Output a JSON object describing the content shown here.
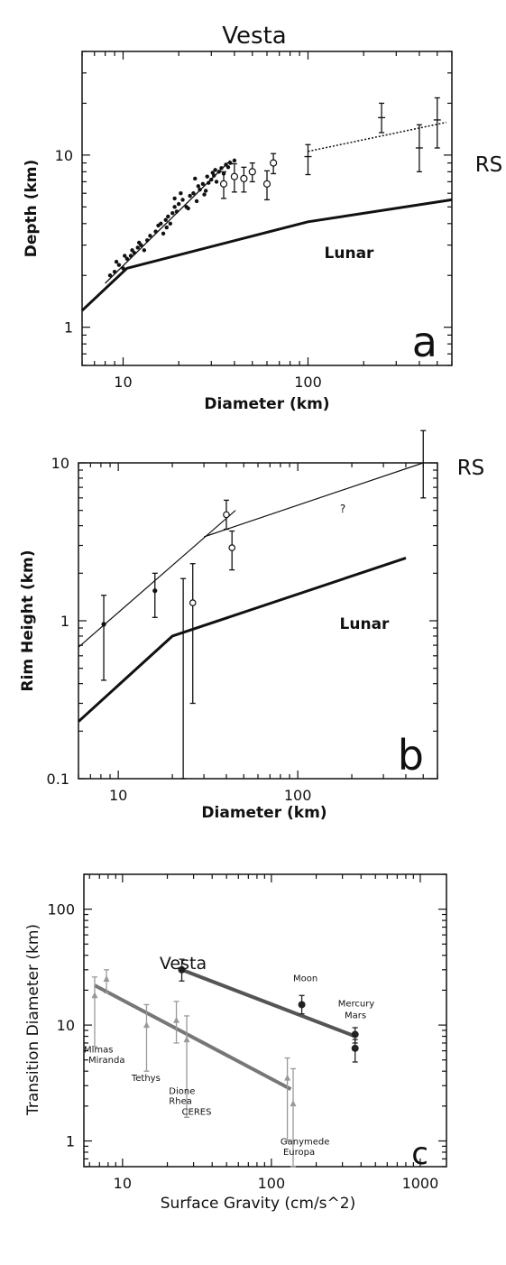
{
  "title": "Vesta",
  "chart_data": [
    {
      "panel": "a",
      "type": "scatter",
      "xlabel": "Diameter (km)",
      "ylabel": "Depth (km)",
      "xscale": "log",
      "yscale": "log",
      "xlim": [
        6,
        600
      ],
      "ylim": [
        0.6,
        40
      ],
      "xticks": [
        10,
        100
      ],
      "yticks": [
        1,
        10
      ],
      "panel_letter": "a",
      "series": [
        {
          "name": "Lunar",
          "kind": "line",
          "x": [
            6,
            10.5,
            100,
            600
          ],
          "y": [
            1.25,
            2.2,
            4.1,
            5.5
          ]
        },
        {
          "kind": "line",
          "x": [
            8,
            38
          ],
          "y": [
            1.8,
            9.3
          ]
        },
        {
          "kind": "scatter",
          "x": [
            8.5,
            9,
            9.5,
            10,
            10.5,
            11,
            11.5,
            12,
            12.5,
            13,
            9.2,
            10.2,
            11.2,
            12.2,
            13.5,
            14,
            15,
            15.5,
            16,
            16.5,
            17,
            17.5,
            18,
            18.5,
            19,
            19.5,
            20,
            21,
            22,
            23,
            24,
            25,
            26,
            27,
            28,
            29,
            30,
            31,
            32,
            33,
            34,
            35,
            36,
            37,
            38,
            40,
            19,
            20.5,
            22.5,
            25.5,
            28.5,
            31.5,
            17.2,
            24.5,
            27.5,
            30.5
          ],
          "y": [
            2.0,
            2.1,
            2.3,
            2.2,
            2.5,
            2.6,
            2.7,
            2.9,
            3.0,
            2.8,
            2.4,
            2.6,
            2.8,
            3.1,
            3.2,
            3.4,
            3.6,
            3.9,
            4.0,
            3.5,
            4.2,
            4.4,
            4.0,
            4.6,
            5.0,
            4.7,
            5.2,
            5.5,
            5.0,
            5.8,
            6.0,
            5.4,
            6.3,
            6.8,
            6.2,
            6.9,
            7.2,
            7.6,
            7.0,
            8.0,
            8.4,
            7.8,
            8.8,
            8.5,
            9.0,
            9.3,
            5.6,
            6.0,
            4.9,
            6.6,
            7.5,
            8.2,
            3.8,
            7.3,
            5.9,
            7.9
          ]
        },
        {
          "kind": "open-circles-with-error",
          "x": [
            35,
            40,
            45,
            50,
            60,
            65
          ],
          "y": [
            6.8,
            7.5,
            7.3,
            8.0,
            6.8,
            9.0
          ],
          "err": [
            1.2,
            1.4,
            1.2,
            1.0,
            1.3,
            1.2
          ]
        },
        {
          "name": "RS",
          "kind": "dotted-line-with-error",
          "x": [
            100,
            250,
            400,
            500
          ],
          "y": [
            9.8,
            16.5,
            11,
            16
          ],
          "lo": [
            7.7,
            13.5,
            8,
            11
          ],
          "hi": [
            11.5,
            20,
            15,
            21.5
          ],
          "trend_x": [
            100,
            560
          ],
          "trend_y": [
            10.5,
            15.5
          ]
        }
      ]
    },
    {
      "panel": "b",
      "type": "scatter",
      "xlabel": "Diameter (km)",
      "ylabel": "Rim Height (km)",
      "xscale": "log",
      "yscale": "log",
      "xlim": [
        6,
        600
      ],
      "ylim": [
        0.1,
        10
      ],
      "xticks": [
        10,
        100
      ],
      "yticks": [
        0.1,
        1,
        10
      ],
      "xtick_labels": [
        "10",
        "100"
      ],
      "ytick_labels": [
        "0.1",
        "1",
        "10"
      ],
      "panel_letter": "b",
      "question_mark": "?",
      "series": [
        {
          "name": "Lunar",
          "kind": "line",
          "x": [
            6,
            20,
            400
          ],
          "y": [
            0.23,
            0.8,
            2.5
          ]
        },
        {
          "kind": "line",
          "x": [
            6,
            45
          ],
          "y": [
            0.68,
            5.0
          ]
        },
        {
          "kind": "line",
          "x": [
            30,
            500
          ],
          "y": [
            3.4,
            10
          ]
        },
        {
          "kind": "points-with-error",
          "x": [
            8.3,
            16,
            23,
            26,
            40,
            43
          ],
          "y": [
            0.95,
            1.55,
            0.85,
            1.3,
            4.7,
            2.9
          ],
          "lo": [
            0.42,
            1.05,
            0.1,
            0.3,
            3.8,
            2.1
          ],
          "hi": [
            1.45,
            2.0,
            1.85,
            2.3,
            5.8,
            3.7
          ],
          "marker": [
            "filled",
            "filled",
            "none",
            "open",
            "open",
            "open"
          ]
        },
        {
          "name": "RS",
          "kind": "point-with-error",
          "x": [
            500
          ],
          "y": [
            10
          ],
          "lo": [
            6
          ],
          "hi": [
            16
          ]
        }
      ]
    },
    {
      "panel": "c",
      "type": "scatter",
      "xlabel": "Surface Gravity (cm/s^2)",
      "ylabel": "Transition Diameter (km)",
      "xscale": "log",
      "yscale": "log",
      "xlim": [
        5.5,
        1500
      ],
      "ylim": [
        0.6,
        200
      ],
      "xticks": [
        10,
        100,
        1000
      ],
      "yticks": [
        1,
        10,
        100
      ],
      "xtick_labels": [
        "10",
        "100",
        "1000"
      ],
      "ytick_labels": [
        "1",
        "10",
        "100"
      ],
      "panel_letter": "c",
      "vesta_label": "Vesta",
      "series": [
        {
          "kind": "line",
          "x": [
            25,
            365
          ],
          "y": [
            30,
            8
          ]
        },
        {
          "kind": "line",
          "x": [
            6.5,
            135
          ],
          "y": [
            22,
            2.8
          ]
        },
        {
          "kind": "filled-circles-with-error",
          "x": [
            25,
            160,
            365,
            365
          ],
          "y": [
            30,
            15,
            8.3,
            6.3
          ],
          "lo": [
            24,
            12.5,
            7,
            4.8
          ],
          "hi": [
            37,
            18,
            9.5,
            7.5
          ]
        },
        {
          "kind": "triangles-with-error",
          "x": [
            6.5,
            7.8,
            14.5,
            23,
            27,
            128,
            140
          ],
          "y": [
            18,
            25,
            10,
            11,
            7.5,
            3.5,
            2.1
          ],
          "lo": [
            6.5,
            19,
            4,
            7,
            1.6,
            1.0,
            0.6
          ],
          "hi": [
            26,
            30,
            15,
            16,
            12,
            5.2,
            4.2
          ]
        }
      ],
      "annotations": [
        {
          "text": "Moon",
          "x": 140,
          "y": 24
        },
        {
          "text": "Mercury",
          "x": 280,
          "y": 14.5
        },
        {
          "text": "Mars",
          "x": 310,
          "y": 11.5
        },
        {
          "text": "Mimas",
          "x": 5.5,
          "y": 5.8
        },
        {
          "text": "Miranda",
          "x": 5.9,
          "y": 4.7
        },
        {
          "text": "Tethys",
          "x": 11.5,
          "y": 3.3
        },
        {
          "text": "Dione",
          "x": 20.5,
          "y": 2.55
        },
        {
          "text": "Rhea",
          "x": 20.5,
          "y": 2.08
        },
        {
          "text": "CERES",
          "x": 25,
          "y": 1.68
        },
        {
          "text": "Ganymede",
          "x": 115,
          "y": 0.93
        },
        {
          "text": "Europa",
          "x": 120,
          "y": 0.76
        }
      ]
    }
  ]
}
